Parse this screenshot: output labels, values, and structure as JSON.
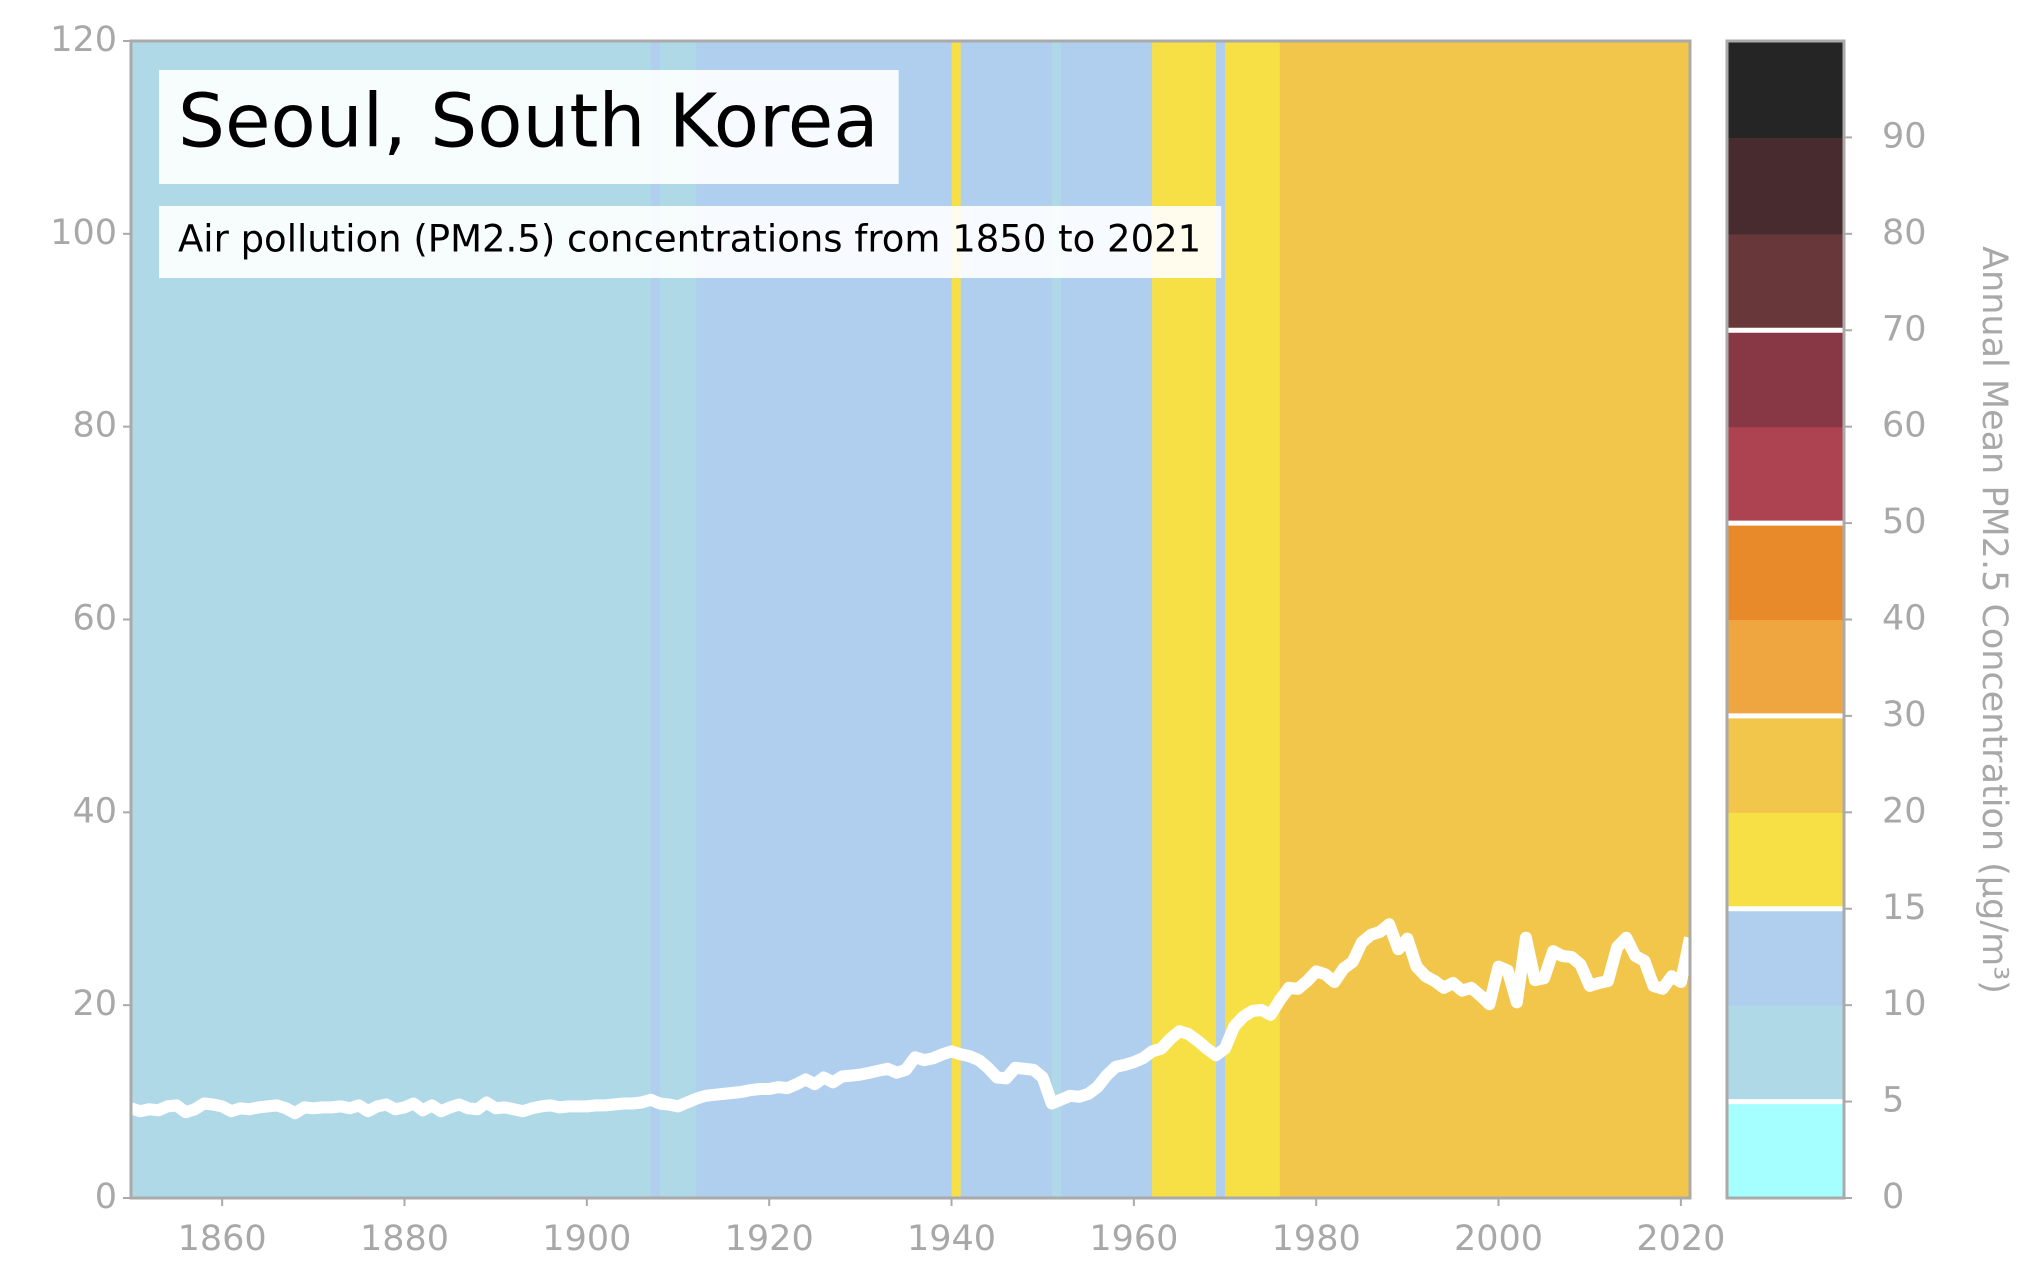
{
  "chart_data": {
    "type": "line",
    "title": "Seoul, South Korea",
    "subtitle": "Air pollution (PM2.5) concentrations from 1850 to 2021",
    "colorbar_label": "Annual Mean PM2.5 Concentration (μg/m³)",
    "line_color": "#ffffff",
    "x": [
      1850,
      1851,
      1852,
      1853,
      1854,
      1855,
      1856,
      1857,
      1858,
      1859,
      1860,
      1861,
      1862,
      1863,
      1864,
      1865,
      1866,
      1867,
      1868,
      1869,
      1870,
      1871,
      1872,
      1873,
      1874,
      1875,
      1876,
      1877,
      1878,
      1879,
      1880,
      1881,
      1882,
      1883,
      1884,
      1885,
      1886,
      1887,
      1888,
      1889,
      1890,
      1891,
      1892,
      1893,
      1894,
      1895,
      1896,
      1897,
      1898,
      1899,
      1900,
      1901,
      1902,
      1903,
      1904,
      1905,
      1906,
      1907,
      1908,
      1909,
      1910,
      1911,
      1912,
      1913,
      1914,
      1915,
      1916,
      1917,
      1918,
      1919,
      1920,
      1921,
      1922,
      1923,
      1924,
      1925,
      1926,
      1927,
      1928,
      1929,
      1930,
      1931,
      1932,
      1933,
      1934,
      1935,
      1936,
      1937,
      1938,
      1939,
      1940,
      1941,
      1942,
      1943,
      1944,
      1945,
      1946,
      1947,
      1948,
      1949,
      1950,
      1951,
      1952,
      1953,
      1954,
      1955,
      1956,
      1957,
      1958,
      1959,
      1960,
      1961,
      1962,
      1963,
      1964,
      1965,
      1966,
      1967,
      1968,
      1969,
      1970,
      1971,
      1972,
      1973,
      1974,
      1975,
      1976,
      1977,
      1978,
      1979,
      1980,
      1981,
      1982,
      1983,
      1984,
      1985,
      1986,
      1987,
      1988,
      1989,
      1990,
      1991,
      1992,
      1993,
      1994,
      1995,
      1996,
      1997,
      1998,
      1999,
      2000,
      2001,
      2002,
      2003,
      2004,
      2005,
      2006,
      2007,
      2008,
      2009,
      2010,
      2011,
      2012,
      2013,
      2014,
      2015,
      2016,
      2017,
      2018,
      2019,
      2020,
      2021
    ],
    "values": [
      9.3,
      9.0,
      9.2,
      9.1,
      9.5,
      9.6,
      8.9,
      9.2,
      9.8,
      9.7,
      9.5,
      9.0,
      9.3,
      9.2,
      9.4,
      9.5,
      9.6,
      9.3,
      8.8,
      9.4,
      9.3,
      9.4,
      9.4,
      9.5,
      9.3,
      9.6,
      9.0,
      9.5,
      9.7,
      9.2,
      9.4,
      9.8,
      9.1,
      9.6,
      9.0,
      9.4,
      9.7,
      9.3,
      9.2,
      9.9,
      9.3,
      9.4,
      9.2,
      9.0,
      9.3,
      9.5,
      9.6,
      9.4,
      9.5,
      9.5,
      9.5,
      9.6,
      9.6,
      9.7,
      9.8,
      9.8,
      9.9,
      10.2,
      9.8,
      9.7,
      9.5,
      9.9,
      10.3,
      10.6,
      10.7,
      10.8,
      10.9,
      11.0,
      11.2,
      11.3,
      11.3,
      11.5,
      11.4,
      11.8,
      12.3,
      11.8,
      12.5,
      12.0,
      12.6,
      12.7,
      12.8,
      13.0,
      13.2,
      13.4,
      13.0,
      13.3,
      14.6,
      14.3,
      14.5,
      14.9,
      15.2,
      14.9,
      14.7,
      14.3,
      13.5,
      12.5,
      12.4,
      13.5,
      13.4,
      13.3,
      12.5,
      9.8,
      10.2,
      10.6,
      10.5,
      10.8,
      11.5,
      12.7,
      13.6,
      13.8,
      14.1,
      14.5,
      15.2,
      15.5,
      16.5,
      17.3,
      17.0,
      16.3,
      15.5,
      14.8,
      15.5,
      17.8,
      18.8,
      19.4,
      19.5,
      19.0,
      20.5,
      21.8,
      21.7,
      22.5,
      23.5,
      23.2,
      22.4,
      23.8,
      24.5,
      26.5,
      27.3,
      27.6,
      28.4,
      25.8,
      26.9,
      24.0,
      23.0,
      22.5,
      21.8,
      22.3,
      21.5,
      21.8,
      21.0,
      20.1,
      24.0,
      23.6,
      20.3,
      27.0,
      22.6,
      22.8,
      25.6,
      25.1,
      25.0,
      24.2,
      22.0,
      22.3,
      22.5,
      26.0,
      27.0,
      25.1,
      24.6,
      22.0,
      21.7,
      23.0,
      22.4,
      27.0
    ],
    "xlim": [
      1850,
      2021
    ],
    "xticks": [
      1860,
      1880,
      1900,
      1920,
      1940,
      1960,
      1980,
      2000,
      2020
    ],
    "ylim": [
      0,
      120
    ],
    "yticks": [
      0,
      20,
      40,
      60,
      80,
      100,
      120
    ],
    "colorbar": {
      "ticks": [
        0,
        5,
        10,
        15,
        20,
        30,
        40,
        50,
        60,
        70,
        80,
        90
      ],
      "colors": [
        "#a6ffff",
        "#b0d9e8",
        "#b0ceed",
        "#f7e045",
        "#f2c64a",
        "#efa640",
        "#e8892a",
        "#ad4351",
        "#883845",
        "#683739",
        "#472b2f",
        "#252525"
      ],
      "separators": [
        5,
        15,
        30,
        50,
        70
      ]
    }
  }
}
